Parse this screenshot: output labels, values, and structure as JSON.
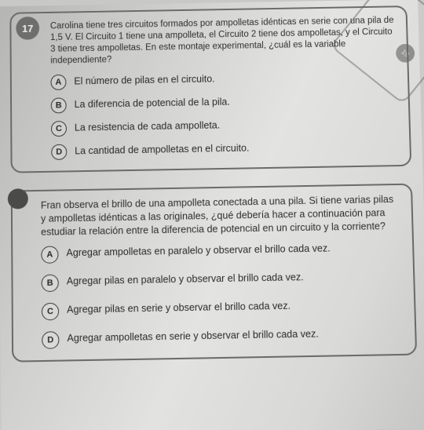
{
  "q17": {
    "number": "17",
    "stem": "Carolina tiene tres circuitos formados por ampolletas idénticas en serie con una pila de 1,5 V. El Circuito 1 tiene una ampolleta, el Circuito 2 tiene dos ampolletas, y el Circuito 3 tiene tres ampolletas. En este montaje experimental, ¿cuál es la variable independiente?",
    "options": {
      "A": "El número de pilas en el circuito.",
      "B": "La diferencia de potencial de la pila.",
      "C": "La resistencia de cada ampolleta.",
      "D": "La cantidad de ampolletas en el circuito."
    }
  },
  "q18": {
    "stem": "Fran observa el brillo de una ampolleta conectada a una pila. Si tiene varias pilas y ampolletas idénticas a las originales, ¿qué debería hacer a continuación para estudiar la relación entre la diferencia de potencial en un circuito y la corriente?",
    "options": {
      "A": "Agregar ampolletas en paralelo y observar el brillo cada vez.",
      "B": "Agregar pilas en paralelo y observar el brillo cada vez.",
      "C": "Agregar pilas en serie y observar el brillo cada vez.",
      "D": "Agregar ampolletas en serie y observar el brillo cada vez."
    }
  },
  "corner": {
    "num": "19"
  }
}
